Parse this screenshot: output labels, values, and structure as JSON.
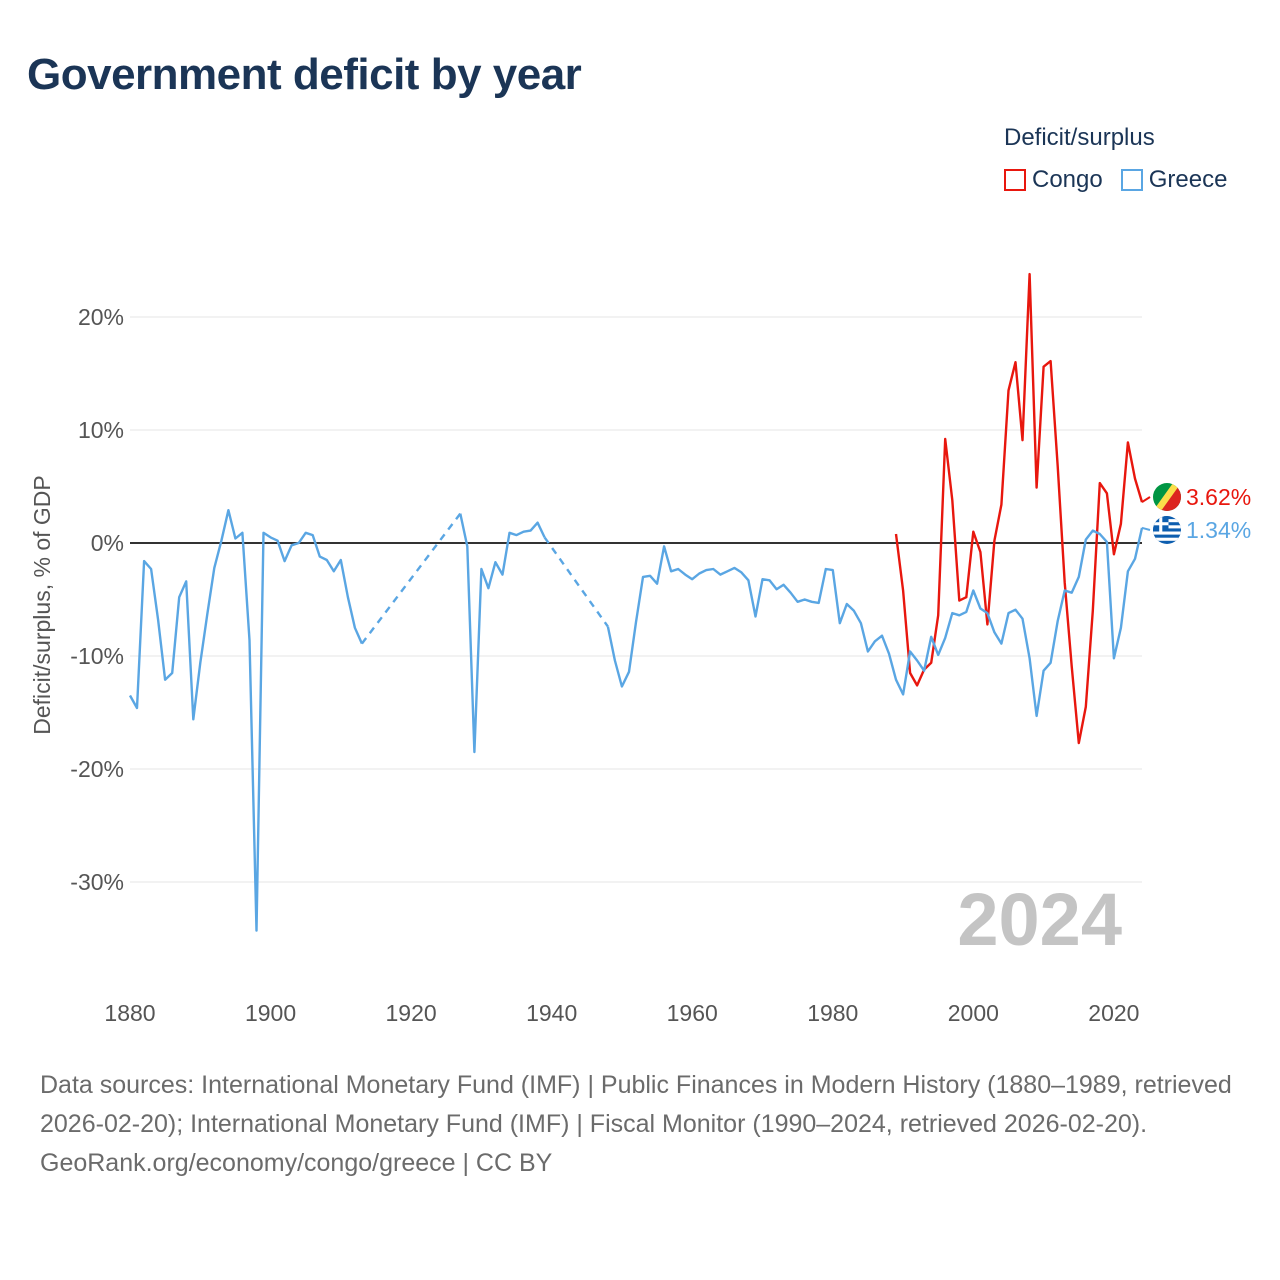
{
  "title": "Government deficit by year",
  "legend": {
    "title": "Deficit/surplus",
    "items": [
      {
        "label": "Congo",
        "color": "#e8170e"
      },
      {
        "label": "Greece",
        "color": "#5aa6e3"
      }
    ]
  },
  "chart_data": {
    "type": "line",
    "ylabel": "Deficit/surplus, % of GDP",
    "xlabel": "",
    "xlim": [
      1880,
      2024
    ],
    "ylim": [
      -36,
      26
    ],
    "x_ticks": [
      1880,
      1900,
      1920,
      1940,
      1960,
      1980,
      2000,
      2020
    ],
    "x_tick_labels": [
      "1880",
      "1900",
      "1920",
      "1940",
      "1960",
      "1980",
      "2000",
      "2020"
    ],
    "y_ticks": [
      20,
      10,
      0,
      -10,
      -20,
      -30
    ],
    "y_tick_labels": [
      "20%",
      "10%",
      "0%",
      "-10%",
      "-20%",
      "-30%"
    ],
    "year_watermark": "2024",
    "series": [
      {
        "name": "Congo",
        "color": "#e8170e",
        "end_label": "3.62%",
        "points": [
          [
            1989,
            0.8
          ],
          [
            1990,
            -4.2
          ],
          [
            1991,
            -11.5
          ],
          [
            1992,
            -12.6
          ],
          [
            1993,
            -11.2
          ],
          [
            1994,
            -10.6
          ],
          [
            1995,
            -6.4
          ],
          [
            1996,
            9.2
          ],
          [
            1997,
            3.8
          ],
          [
            1998,
            -5.1
          ],
          [
            1999,
            -4.8
          ],
          [
            2000,
            1.0
          ],
          [
            2001,
            -0.8
          ],
          [
            2002,
            -7.2
          ],
          [
            2003,
            0.2
          ],
          [
            2004,
            3.4
          ],
          [
            2005,
            13.5
          ],
          [
            2006,
            16.0
          ],
          [
            2007,
            9.1
          ],
          [
            2008,
            23.8
          ],
          [
            2009,
            4.9
          ],
          [
            2010,
            15.6
          ],
          [
            2011,
            16.1
          ],
          [
            2012,
            6.8
          ],
          [
            2013,
            -3.5
          ],
          [
            2014,
            -10.9
          ],
          [
            2015,
            -17.7
          ],
          [
            2016,
            -14.5
          ],
          [
            2017,
            -6.0
          ],
          [
            2018,
            5.3
          ],
          [
            2019,
            4.4
          ],
          [
            2020,
            -1.0
          ],
          [
            2021,
            1.7
          ],
          [
            2022,
            8.9
          ],
          [
            2023,
            5.7
          ],
          [
            2024,
            3.62
          ]
        ]
      },
      {
        "name": "Greece",
        "color": "#5aa6e3",
        "end_label": "1.34%",
        "points": [
          [
            1880,
            -13.5
          ],
          [
            1881,
            -14.6
          ],
          [
            1882,
            -1.6
          ],
          [
            1883,
            -2.3
          ],
          [
            1884,
            -6.8
          ],
          [
            1885,
            -12.1
          ],
          [
            1886,
            -11.5
          ],
          [
            1887,
            -4.8
          ],
          [
            1888,
            -3.4
          ],
          [
            1889,
            -15.6
          ],
          [
            1890,
            -10.6
          ],
          [
            1891,
            -6.3
          ],
          [
            1892,
            -2.2
          ],
          [
            1893,
            0.2
          ],
          [
            1894,
            2.9
          ],
          [
            1895,
            0.4
          ],
          [
            1896,
            0.9
          ],
          [
            1897,
            -8.6
          ],
          [
            1898,
            -34.3
          ],
          [
            1899,
            0.9
          ],
          [
            1900,
            0.5
          ],
          [
            1901,
            0.2
          ],
          [
            1902,
            -1.6
          ],
          [
            1903,
            -0.2
          ],
          [
            1904,
            0.0
          ],
          [
            1905,
            0.9
          ],
          [
            1906,
            0.7
          ],
          [
            1907,
            -1.2
          ],
          [
            1908,
            -1.5
          ],
          [
            1909,
            -2.5
          ],
          [
            1910,
            -1.5
          ],
          [
            1911,
            -4.8
          ],
          [
            1912,
            -7.5
          ],
          [
            1913,
            -8.9
          ],
          [
            1913,
            null
          ],
          [
            1913,
            -8.9
          ],
          [
            1927,
            2.6
          ],
          [
            1927,
            null
          ],
          [
            1927,
            2.6
          ],
          [
            1928,
            -0.3
          ],
          [
            1929,
            -18.5
          ],
          [
            1930,
            -2.3
          ],
          [
            1931,
            -4.0
          ],
          [
            1932,
            -1.7
          ],
          [
            1933,
            -2.8
          ],
          [
            1934,
            0.9
          ],
          [
            1935,
            0.7
          ],
          [
            1936,
            1.0
          ],
          [
            1937,
            1.1
          ],
          [
            1938,
            1.8
          ],
          [
            1939,
            0.5
          ],
          [
            1939,
            null
          ],
          [
            1939,
            0.5
          ],
          [
            1948,
            -7.4
          ],
          [
            1948,
            null
          ],
          [
            1948,
            -7.4
          ],
          [
            1949,
            -10.4
          ],
          [
            1950,
            -12.7
          ],
          [
            1951,
            -11.4
          ],
          [
            1952,
            -7.0
          ],
          [
            1953,
            -3.0
          ],
          [
            1954,
            -2.9
          ],
          [
            1955,
            -3.6
          ],
          [
            1956,
            -0.3
          ],
          [
            1957,
            -2.5
          ],
          [
            1958,
            -2.3
          ],
          [
            1959,
            -2.8
          ],
          [
            1960,
            -3.2
          ],
          [
            1961,
            -2.7
          ],
          [
            1962,
            -2.4
          ],
          [
            1963,
            -2.3
          ],
          [
            1964,
            -2.8
          ],
          [
            1965,
            -2.5
          ],
          [
            1966,
            -2.2
          ],
          [
            1967,
            -2.6
          ],
          [
            1968,
            -3.3
          ],
          [
            1969,
            -6.5
          ],
          [
            1970,
            -3.2
          ],
          [
            1971,
            -3.3
          ],
          [
            1972,
            -4.1
          ],
          [
            1973,
            -3.7
          ],
          [
            1974,
            -4.4
          ],
          [
            1975,
            -5.2
          ],
          [
            1976,
            -5.0
          ],
          [
            1977,
            -5.2
          ],
          [
            1978,
            -5.3
          ],
          [
            1979,
            -2.3
          ],
          [
            1980,
            -2.4
          ],
          [
            1981,
            -7.1
          ],
          [
            1982,
            -5.4
          ],
          [
            1983,
            -6.0
          ],
          [
            1984,
            -7.1
          ],
          [
            1985,
            -9.6
          ],
          [
            1986,
            -8.7
          ],
          [
            1987,
            -8.2
          ],
          [
            1988,
            -9.8
          ],
          [
            1989,
            -12.1
          ],
          [
            1990,
            -13.4
          ],
          [
            1991,
            -9.6
          ],
          [
            1992,
            -10.4
          ],
          [
            1993,
            -11.3
          ],
          [
            1994,
            -8.3
          ],
          [
            1995,
            -9.9
          ],
          [
            1996,
            -8.4
          ],
          [
            1997,
            -6.2
          ],
          [
            1998,
            -6.4
          ],
          [
            1999,
            -6.1
          ],
          [
            2000,
            -4.2
          ],
          [
            2001,
            -5.8
          ],
          [
            2002,
            -6.2
          ],
          [
            2003,
            -7.9
          ],
          [
            2004,
            -8.9
          ],
          [
            2005,
            -6.2
          ],
          [
            2006,
            -5.9
          ],
          [
            2007,
            -6.7
          ],
          [
            2008,
            -10.2
          ],
          [
            2009,
            -15.3
          ],
          [
            2010,
            -11.3
          ],
          [
            2011,
            -10.6
          ],
          [
            2012,
            -6.9
          ],
          [
            2013,
            -4.2
          ],
          [
            2014,
            -4.4
          ],
          [
            2015,
            -3.0
          ],
          [
            2016,
            0.3
          ],
          [
            2017,
            1.1
          ],
          [
            2018,
            0.8
          ],
          [
            2019,
            0.1
          ],
          [
            2020,
            -10.2
          ],
          [
            2021,
            -7.5
          ],
          [
            2022,
            -2.5
          ],
          [
            2023,
            -1.4
          ],
          [
            2024,
            1.34
          ]
        ],
        "dashed_gaps": [
          [
            1913,
            1927
          ],
          [
            1939,
            1948
          ]
        ]
      }
    ]
  },
  "footer": {
    "sources": "Data sources: International Monetary Fund (IMF) | Public Finances in Modern History (1880–1989, retrieved 2026-02-20); International Monetary Fund (IMF) | Fiscal Monitor (1990–2024, retrieved 2026-02-20).",
    "credit": "GeoRank.org/economy/congo/greece | CC BY"
  }
}
